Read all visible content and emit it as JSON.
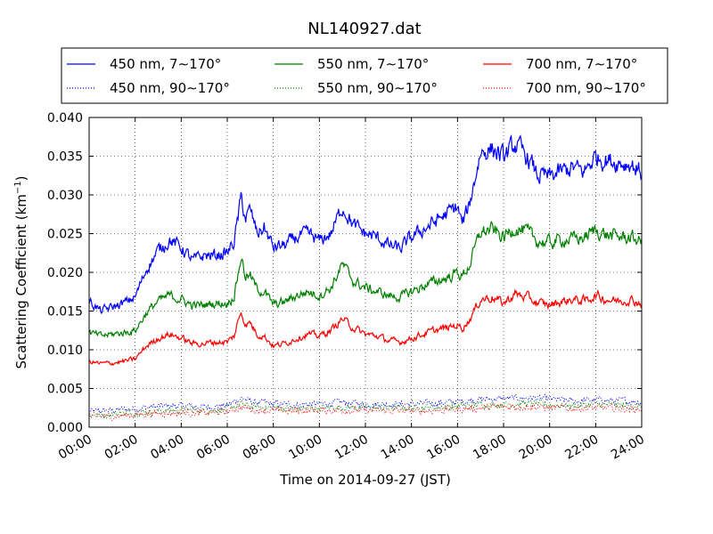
{
  "chart_data": {
    "type": "line",
    "title": "NL140927.dat",
    "xlabel": "Time on 2014-09-27 (JST)",
    "ylabel": "Scattering Coefficient (km",
    "ylabel_sup": "−1",
    "ylabel_end": ")",
    "xlim": [
      0,
      24
    ],
    "ylim": [
      0,
      0.04
    ],
    "grid": true,
    "legend_position": "top",
    "x_ticks": [
      0,
      2,
      4,
      6,
      8,
      10,
      12,
      14,
      16,
      18,
      20,
      22,
      24
    ],
    "x_tick_labels": [
      "00:00",
      "02:00",
      "04:00",
      "06:00",
      "08:00",
      "10:00",
      "12:00",
      "14:00",
      "16:00",
      "18:00",
      "20:00",
      "22:00",
      "24:00"
    ],
    "y_ticks": [
      0,
      0.005,
      0.01,
      0.015,
      0.02,
      0.025,
      0.03,
      0.035,
      0.04
    ],
    "y_tick_labels": [
      "0.000",
      "0.005",
      "0.010",
      "0.015",
      "0.020",
      "0.025",
      "0.030",
      "0.035",
      "0.040"
    ],
    "series": [
      {
        "name": "450 nm, 7∼170°",
        "color": "#0000ff",
        "style": "solid",
        "x": [
          0,
          0.5,
          1,
          1.5,
          2,
          2.5,
          3,
          3.5,
          4,
          4.5,
          5,
          5.5,
          6,
          6.3,
          6.6,
          6.8,
          7,
          7.3,
          7.6,
          8,
          8.5,
          9,
          9.5,
          10,
          10.5,
          11,
          11.5,
          12,
          12.5,
          13,
          13.5,
          14,
          14.5,
          15,
          15.5,
          16,
          16.2,
          16.5,
          17,
          17.5,
          18,
          18.5,
          19,
          19.5,
          20,
          20.5,
          21,
          21.5,
          22,
          22.5,
          23,
          23.5,
          24
        ],
        "y": [
          0.0163,
          0.015,
          0.0155,
          0.016,
          0.0168,
          0.0205,
          0.0228,
          0.0242,
          0.0232,
          0.0215,
          0.0222,
          0.0222,
          0.0225,
          0.024,
          0.0295,
          0.027,
          0.028,
          0.025,
          0.0258,
          0.0232,
          0.0235,
          0.0245,
          0.025,
          0.024,
          0.025,
          0.0285,
          0.026,
          0.025,
          0.0245,
          0.0235,
          0.023,
          0.0245,
          0.0255,
          0.0265,
          0.0275,
          0.0285,
          0.0262,
          0.0285,
          0.0355,
          0.036,
          0.0348,
          0.0365,
          0.035,
          0.0325,
          0.0323,
          0.033,
          0.0335,
          0.033,
          0.035,
          0.0345,
          0.0342,
          0.034,
          0.033
        ]
      },
      {
        "name": "550 nm, 7∼170°",
        "color": "#008000",
        "style": "solid",
        "x": [
          0,
          0.5,
          1,
          1.5,
          2,
          2.5,
          3,
          3.5,
          4,
          4.5,
          5,
          5.5,
          6,
          6.3,
          6.6,
          6.8,
          7,
          7.3,
          7.6,
          8,
          8.5,
          9,
          9.5,
          10,
          10.5,
          11,
          11.5,
          12,
          12.5,
          13,
          13.5,
          14,
          14.5,
          15,
          15.5,
          16,
          16.2,
          16.5,
          17,
          17.5,
          18,
          18.5,
          19,
          19.5,
          20,
          20.5,
          21,
          21.5,
          22,
          22.5,
          23,
          23.5,
          24
        ],
        "y": [
          0.0122,
          0.0118,
          0.012,
          0.0122,
          0.0125,
          0.0148,
          0.0163,
          0.017,
          0.0165,
          0.0157,
          0.0158,
          0.016,
          0.016,
          0.017,
          0.022,
          0.0195,
          0.0195,
          0.0178,
          0.0175,
          0.0158,
          0.0162,
          0.017,
          0.0175,
          0.017,
          0.018,
          0.021,
          0.0188,
          0.018,
          0.0175,
          0.017,
          0.0168,
          0.0175,
          0.0182,
          0.0188,
          0.0192,
          0.02,
          0.0195,
          0.0208,
          0.0252,
          0.0255,
          0.0245,
          0.0258,
          0.0252,
          0.024,
          0.0238,
          0.0242,
          0.0243,
          0.0245,
          0.0255,
          0.0248,
          0.0246,
          0.0245,
          0.024
        ]
      },
      {
        "name": "700 nm, 7∼170°",
        "color": "#ff0000",
        "style": "solid",
        "x": [
          0,
          0.5,
          1,
          1.5,
          2,
          2.5,
          3,
          3.5,
          4,
          4.5,
          5,
          5.5,
          6,
          6.3,
          6.6,
          6.8,
          7,
          7.3,
          7.6,
          8,
          8.5,
          9,
          9.5,
          10,
          10.5,
          11,
          11.5,
          12,
          12.5,
          13,
          13.5,
          14,
          14.5,
          15,
          15.5,
          16,
          16.2,
          16.5,
          17,
          17.5,
          18,
          18.5,
          19,
          19.5,
          20,
          20.5,
          21,
          21.5,
          22,
          22.5,
          23,
          23.5,
          24
        ],
        "y": [
          0.0085,
          0.0082,
          0.0083,
          0.0085,
          0.0088,
          0.0105,
          0.0115,
          0.012,
          0.0115,
          0.0108,
          0.0108,
          0.011,
          0.011,
          0.0118,
          0.015,
          0.0132,
          0.0135,
          0.012,
          0.0118,
          0.0105,
          0.0108,
          0.0115,
          0.012,
          0.0118,
          0.0125,
          0.014,
          0.0128,
          0.012,
          0.0118,
          0.0112,
          0.011,
          0.0115,
          0.012,
          0.0125,
          0.0128,
          0.0132,
          0.0128,
          0.0138,
          0.0165,
          0.0168,
          0.016,
          0.0172,
          0.0168,
          0.016,
          0.0158,
          0.0162,
          0.0165,
          0.0163,
          0.017,
          0.0165,
          0.0163,
          0.0165,
          0.016
        ]
      },
      {
        "name": "450 nm, 90∼170°",
        "color": "#0000ff",
        "style": "dotted",
        "x": [
          0,
          1,
          2,
          3,
          4,
          5,
          6,
          6.6,
          7,
          8,
          9,
          10,
          11,
          12,
          13,
          14,
          15,
          16,
          17,
          18,
          19,
          20,
          21,
          22,
          23,
          24
        ],
        "y": [
          0.002,
          0.0022,
          0.0024,
          0.0027,
          0.0028,
          0.0026,
          0.0028,
          0.0038,
          0.0033,
          0.003,
          0.0029,
          0.003,
          0.0032,
          0.003,
          0.003,
          0.003,
          0.0031,
          0.0033,
          0.0036,
          0.0037,
          0.0038,
          0.0036,
          0.0034,
          0.0035,
          0.0034,
          0.0033
        ]
      },
      {
        "name": "550 nm, 90∼170°",
        "color": "#008000",
        "style": "dotted",
        "x": [
          0,
          1,
          2,
          3,
          4,
          5,
          6,
          6.6,
          7,
          8,
          9,
          10,
          11,
          12,
          13,
          14,
          15,
          16,
          17,
          18,
          19,
          20,
          21,
          22,
          23,
          24
        ],
        "y": [
          0.0016,
          0.0017,
          0.0019,
          0.0021,
          0.0022,
          0.0021,
          0.0023,
          0.003,
          0.0027,
          0.0025,
          0.0024,
          0.0025,
          0.0026,
          0.0025,
          0.0025,
          0.0025,
          0.0026,
          0.0027,
          0.0029,
          0.003,
          0.0031,
          0.0029,
          0.0028,
          0.0029,
          0.0028,
          0.0027
        ]
      },
      {
        "name": "700 nm, 90∼170°",
        "color": "#ff0000",
        "style": "dotted",
        "x": [
          0,
          1,
          2,
          3,
          4,
          5,
          6,
          6.6,
          7,
          8,
          9,
          10,
          11,
          12,
          13,
          14,
          15,
          16,
          17,
          18,
          19,
          20,
          21,
          22,
          23,
          24
        ],
        "y": [
          0.0013,
          0.0014,
          0.0016,
          0.0018,
          0.0019,
          0.0018,
          0.002,
          0.0026,
          0.0023,
          0.0021,
          0.0021,
          0.0022,
          0.0022,
          0.0021,
          0.0021,
          0.0021,
          0.0022,
          0.0023,
          0.0025,
          0.0026,
          0.0027,
          0.0025,
          0.0024,
          0.0025,
          0.0024,
          0.0023
        ]
      }
    ]
  }
}
